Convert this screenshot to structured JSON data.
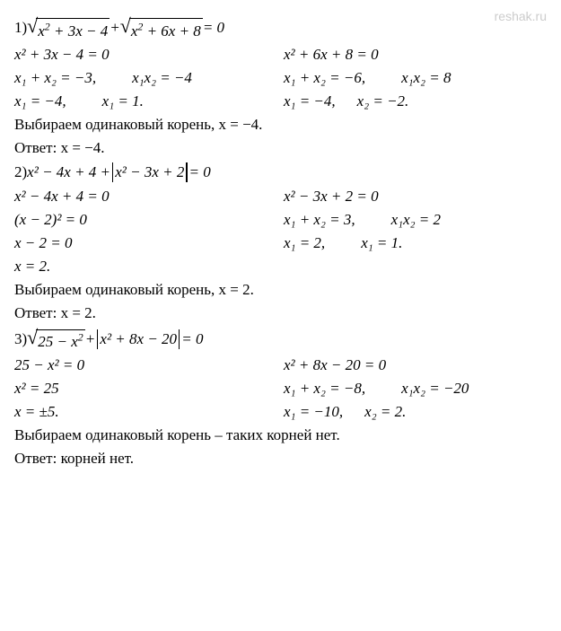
{
  "watermark": "reshak.ru",
  "p1": {
    "num": "1) ",
    "eq_lhs1": "x² + 3x − 4",
    "eq_plus": " + ",
    "eq_lhs2": "x² + 6x + 8",
    "eq_rhs": " = 0",
    "left": {
      "l1": "x² + 3x − 4 = 0",
      "l2a": "x₁ + x₂ = −3,",
      "l2b": "x₁x₂ = −4",
      "l3a": "x₁ = −4,",
      "l3b": "x₁ = 1."
    },
    "right": {
      "l1": "x² + 6x + 8 = 0",
      "l2a": "x₁ + x₂ = −6,",
      "l2b": "x₁x₂ = 8",
      "l3a": "x₁ = −4,",
      "l3b": "x₂ = −2."
    },
    "pick": "Выбираем одинаковый корень, x = −4.",
    "ans": "Ответ: x = −4."
  },
  "p2": {
    "num": "2) ",
    "eq_a": "x² − 4x + 4 + ",
    "eq_abs": "x² − 3x + 2",
    "eq_rhs": " = 0",
    "left": {
      "l1": "x² − 4x + 4 = 0",
      "l2": "(x − 2)²  = 0",
      "l3": "x − 2 = 0",
      "l4": "x = 2."
    },
    "right": {
      "l1": "x² − 3x + 2 = 0",
      "l2a": "x₁ + x₂ = 3,",
      "l2b": "x₁x₂ = 2",
      "l3a": "x₁ = 2,",
      "l3b": "x₁ = 1."
    },
    "pick": "Выбираем одинаковый корень, x = 2.",
    "ans": "Ответ: x = 2."
  },
  "p3": {
    "num": "3) ",
    "eq_sqrt": "25 − x²",
    "eq_plus": " + ",
    "eq_abs": "x² + 8x − 20",
    "eq_rhs": " = 0",
    "left": {
      "l1": "25 − x² = 0",
      "l2": "x² = 25",
      "l3": "x = ±5."
    },
    "right": {
      "l1": "x² + 8x − 20 = 0",
      "l2a": "x₁ + x₂ = −8,",
      "l2b": "x₁x₂ = −20",
      "l3a": "x₁ = −10,",
      "l3b": "x₂ = 2."
    },
    "pick": "Выбираем одинаковый корень – таких корней нет.",
    "ans": "Ответ: корней нет."
  }
}
